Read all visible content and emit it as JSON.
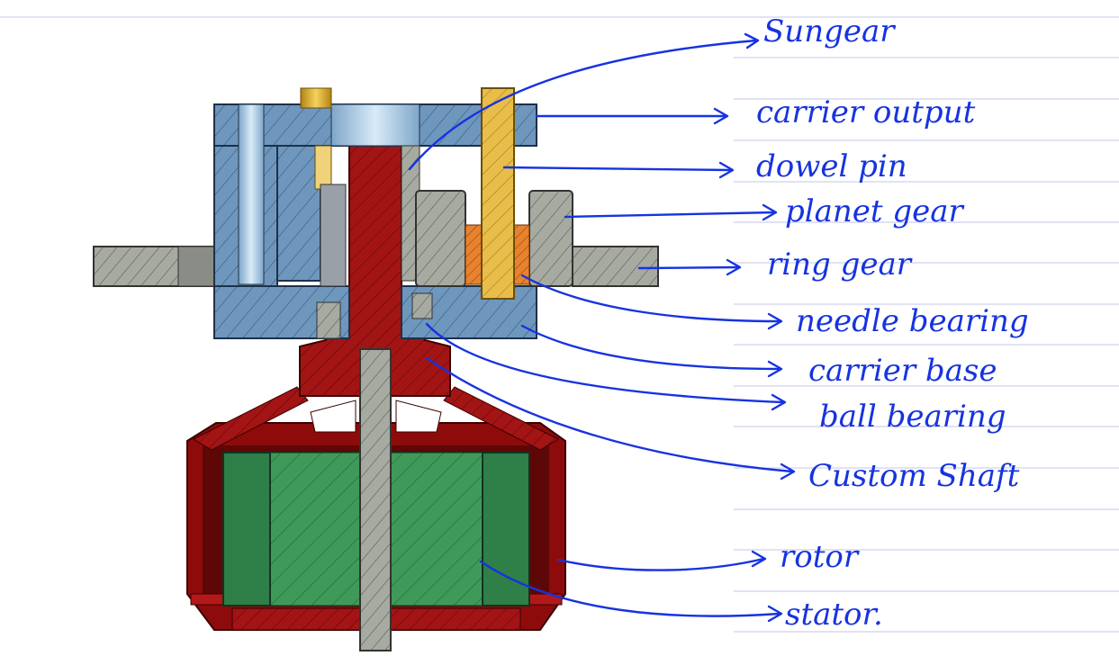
{
  "labels": {
    "sun_gear": "Sungear",
    "carrier_output": "carrier output",
    "dowel_pin": "dowel pin",
    "planet_gear": "planet gear",
    "ring_gear": "ring gear",
    "needle_bearing": "needle bearing",
    "carrier_base": "carrier base",
    "ball_bearing": "ball bearing",
    "custom_shaft": "Custom Shaft",
    "rotor": "rotor",
    "stator": "stator."
  },
  "colors": {
    "ink": "#1633e0",
    "ruled_line": "#c4c6ea",
    "carrier": "#6f97bd",
    "gear_grey": "#a6aaa0",
    "shaft_red": "#a31414",
    "rotor_red": "#8e0b0b",
    "stator_green": "#3f9a5a",
    "dowel_gold": "#e8bd4a",
    "needle_orange": "#e8822e",
    "pin_blue": "#b2d2ea"
  }
}
